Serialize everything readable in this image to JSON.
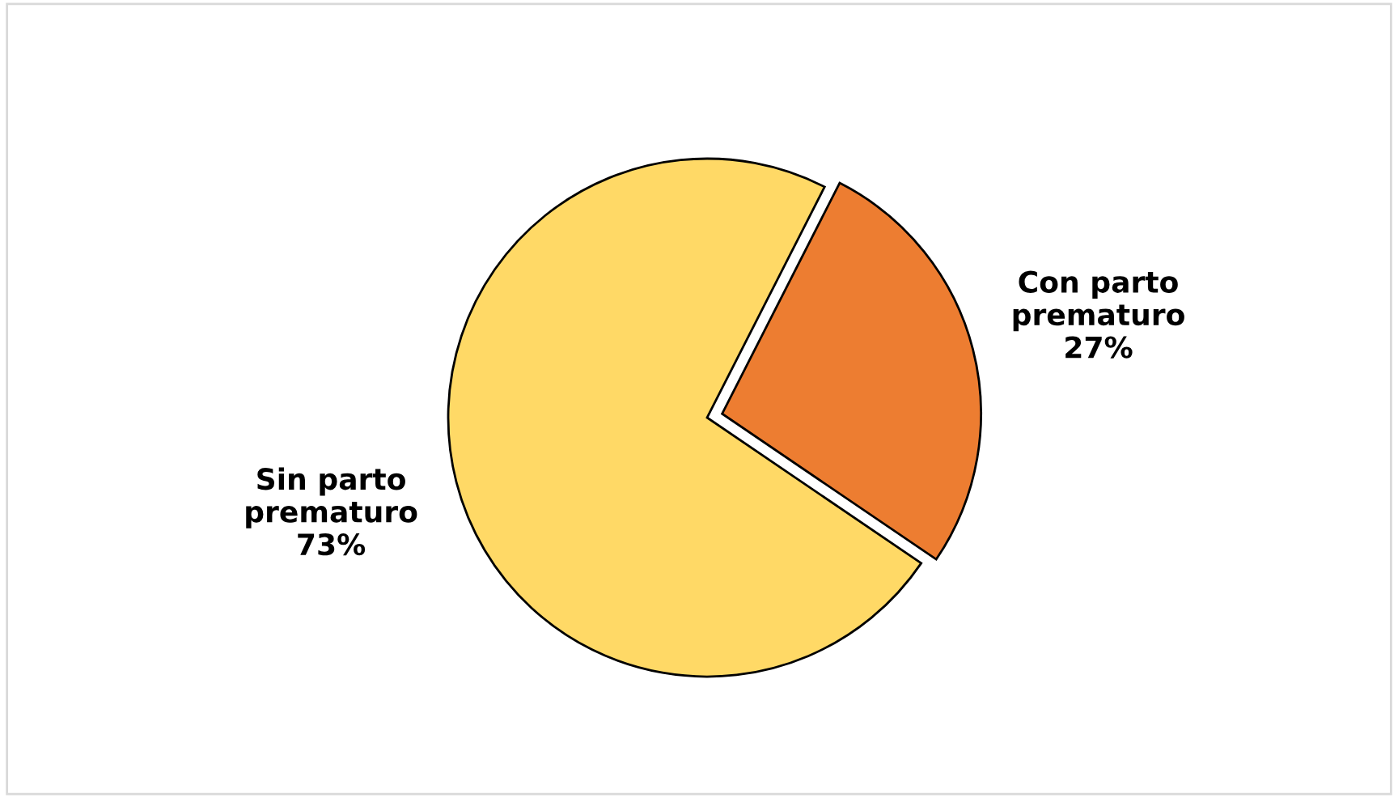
{
  "chart_data": {
    "type": "pie",
    "categories": [
      "Sin parto\nprematuro",
      "Con parto\nprematuro"
    ],
    "values": [
      73,
      27
    ],
    "colors": [
      "#ffd966",
      "#ed7d31"
    ],
    "value_labels": [
      "73%",
      "27%"
    ]
  }
}
